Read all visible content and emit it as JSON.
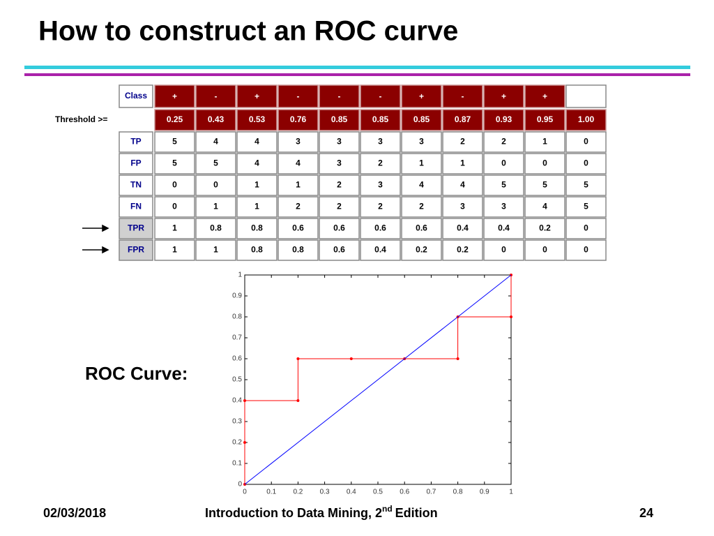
{
  "title": "How to construct an ROC curve",
  "table": {
    "class_label": "Class",
    "classes": [
      "+",
      "-",
      "+",
      "-",
      "-",
      "-",
      "+",
      "-",
      "+",
      "+"
    ],
    "threshold_label": "Threshold >=",
    "thresholds": [
      "0.25",
      "0.43",
      "0.53",
      "0.76",
      "0.85",
      "0.85",
      "0.85",
      "0.87",
      "0.93",
      "0.95",
      "1.00"
    ],
    "rows": [
      {
        "label": "TP",
        "values": [
          5,
          4,
          4,
          3,
          3,
          3,
          3,
          2,
          2,
          1,
          0
        ]
      },
      {
        "label": "FP",
        "values": [
          5,
          5,
          4,
          4,
          3,
          2,
          1,
          1,
          0,
          0,
          0
        ]
      },
      {
        "label": "TN",
        "values": [
          0,
          0,
          1,
          1,
          2,
          3,
          4,
          4,
          5,
          5,
          5
        ]
      },
      {
        "label": "FN",
        "values": [
          0,
          1,
          1,
          2,
          2,
          2,
          2,
          3,
          3,
          4,
          5
        ]
      },
      {
        "label": "TPR",
        "values": [
          1,
          0.8,
          0.8,
          0.6,
          0.6,
          0.6,
          0.6,
          0.4,
          0.4,
          0.2,
          0
        ]
      },
      {
        "label": "FPR",
        "values": [
          1,
          1,
          0.8,
          0.8,
          0.6,
          0.4,
          0.2,
          0.2,
          0,
          0,
          0
        ]
      }
    ]
  },
  "roc_label": "ROC Curve:",
  "chart_data": {
    "type": "line",
    "xlim": [
      0,
      1
    ],
    "ylim": [
      0,
      1
    ],
    "xticks": [
      0,
      0.1,
      0.2,
      0.3,
      0.4,
      0.5,
      0.6,
      0.7,
      0.8,
      0.9,
      1
    ],
    "yticks": [
      0,
      0.1,
      0.2,
      0.3,
      0.4,
      0.5,
      0.6,
      0.7,
      0.8,
      0.9,
      1
    ],
    "series": [
      {
        "color": "#ff0000",
        "markers": true,
        "x": [
          1,
          1,
          0.8,
          0.8,
          0.6,
          0.4,
          0.2,
          0.2,
          0,
          0,
          0
        ],
        "values": [
          1,
          0.8,
          0.8,
          0.6,
          0.6,
          0.6,
          0.6,
          0.4,
          0.4,
          0.2,
          0
        ]
      },
      {
        "color": "#0000ff",
        "markers": false,
        "x": [
          0,
          1
        ],
        "values": [
          0,
          1
        ]
      }
    ]
  },
  "footer": {
    "date": "02/03/2018",
    "book": "Introduction to Data Mining, 2",
    "ordinal_suffix": "nd",
    "edition": "Edition",
    "page": "24"
  }
}
